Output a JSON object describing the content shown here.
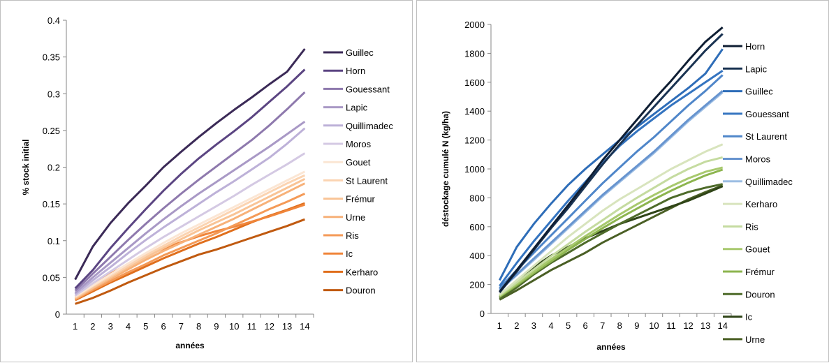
{
  "chart_data": [
    {
      "type": "line",
      "xlabel": "années",
      "ylabel": "% stock initial",
      "x": [
        1,
        2,
        3,
        4,
        5,
        6,
        7,
        8,
        9,
        10,
        11,
        12,
        13,
        14
      ],
      "ylim": [
        0,
        0.4
      ],
      "yticks": [
        "0",
        "0.05",
        "0.1",
        "0.15",
        "0.2",
        "0.25",
        "0.3",
        "0.35",
        "0.4"
      ],
      "grid": false,
      "legend": "right",
      "series": [
        {
          "name": "Guillec",
          "color": "#3b2a57",
          "values": [
            0.047,
            0.092,
            0.124,
            0.151,
            0.175,
            0.2,
            0.221,
            0.241,
            0.26,
            0.278,
            0.295,
            0.313,
            0.33,
            0.361
          ]
        },
        {
          "name": "Horn",
          "color": "#5b4582",
          "values": [
            0.035,
            0.06,
            0.09,
            0.117,
            0.143,
            0.168,
            0.191,
            0.212,
            0.231,
            0.249,
            0.268,
            0.289,
            0.31,
            0.333
          ]
        },
        {
          "name": "Gouessant",
          "color": "#8e79ad",
          "values": [
            0.032,
            0.055,
            0.078,
            0.101,
            0.123,
            0.144,
            0.164,
            0.183,
            0.201,
            0.219,
            0.237,
            0.257,
            0.279,
            0.302
          ]
        },
        {
          "name": "Lapic",
          "color": "#a999c6",
          "values": [
            0.029,
            0.05,
            0.07,
            0.09,
            0.11,
            0.129,
            0.147,
            0.164,
            0.18,
            0.196,
            0.212,
            0.228,
            0.245,
            0.262
          ]
        },
        {
          "name": "Quillimadec",
          "color": "#bdb1d8",
          "values": [
            0.027,
            0.046,
            0.064,
            0.083,
            0.101,
            0.118,
            0.134,
            0.15,
            0.166,
            0.181,
            0.197,
            0.213,
            0.232,
            0.253
          ]
        },
        {
          "name": "Moros",
          "color": "#d4c9e3",
          "values": [
            0.025,
            0.042,
            0.058,
            0.074,
            0.09,
            0.105,
            0.119,
            0.133,
            0.147,
            0.161,
            0.176,
            0.19,
            0.204,
            0.219
          ]
        },
        {
          "name": "Gouet",
          "color": "#fbe6d4",
          "values": [
            0.024,
            0.039,
            0.054,
            0.069,
            0.083,
            0.097,
            0.11,
            0.122,
            0.134,
            0.146,
            0.158,
            0.17,
            0.182,
            0.194
          ]
        },
        {
          "name": "St Laurent",
          "color": "#fbd4b2",
          "values": [
            0.023,
            0.038,
            0.052,
            0.066,
            0.08,
            0.093,
            0.106,
            0.118,
            0.13,
            0.142,
            0.154,
            0.166,
            0.178,
            0.189
          ]
        },
        {
          "name": "Frémur",
          "color": "#f9c496",
          "values": [
            0.022,
            0.036,
            0.05,
            0.064,
            0.077,
            0.09,
            0.102,
            0.114,
            0.125,
            0.136,
            0.148,
            0.16,
            0.172,
            0.184
          ]
        },
        {
          "name": "Urne",
          "color": "#f7b179",
          "values": [
            0.021,
            0.035,
            0.048,
            0.061,
            0.074,
            0.086,
            0.097,
            0.108,
            0.119,
            0.13,
            0.142,
            0.154,
            0.166,
            0.178
          ]
        },
        {
          "name": "Ris",
          "color": "#f49a57",
          "values": [
            0.02,
            0.033,
            0.045,
            0.057,
            0.068,
            0.08,
            0.09,
            0.1,
            0.11,
            0.121,
            0.132,
            0.143,
            0.153,
            0.164
          ]
        },
        {
          "name": "Ic",
          "color": "#f0853a",
          "values": [
            0.024,
            0.04,
            0.055,
            0.068,
            0.079,
            0.089,
            0.098,
            0.106,
            0.113,
            0.119,
            0.126,
            0.133,
            0.141,
            0.149
          ]
        },
        {
          "name": "Kerharo",
          "color": "#e06f1d",
          "values": [
            0.019,
            0.031,
            0.043,
            0.054,
            0.065,
            0.076,
            0.086,
            0.096,
            0.105,
            0.115,
            0.125,
            0.134,
            0.142,
            0.151
          ]
        },
        {
          "name": "Douron",
          "color": "#c05a10",
          "values": [
            0.014,
            0.022,
            0.032,
            0.043,
            0.053,
            0.063,
            0.072,
            0.081,
            0.088,
            0.096,
            0.104,
            0.112,
            0.12,
            0.129
          ]
        }
      ]
    },
    {
      "type": "line",
      "xlabel": "années",
      "ylabel": "déstockage cumulé N (kg/ha)",
      "x": [
        1,
        2,
        3,
        4,
        5,
        6,
        7,
        8,
        9,
        10,
        11,
        12,
        13,
        14
      ],
      "ylim": [
        0,
        2000
      ],
      "yticks": [
        "0",
        "200",
        "400",
        "600",
        "800",
        "1000",
        "1200",
        "1400",
        "1600",
        "1800",
        "2000"
      ],
      "grid": false,
      "legend": "right",
      "series": [
        {
          "name": "Horn",
          "color": "#0f1e33",
          "values": [
            150,
            300,
            450,
            600,
            750,
            900,
            1060,
            1200,
            1340,
            1480,
            1610,
            1750,
            1880,
            1980
          ]
        },
        {
          "name": "Lapic",
          "color": "#1a3352",
          "values": [
            145,
            290,
            440,
            590,
            730,
            880,
            1030,
            1170,
            1300,
            1430,
            1560,
            1690,
            1820,
            1935
          ]
        },
        {
          "name": "Guillec",
          "color": "#2e6db8",
          "values": [
            230,
            460,
            620,
            760,
            890,
            1000,
            1100,
            1200,
            1290,
            1380,
            1470,
            1560,
            1660,
            1830
          ]
        },
        {
          "name": "Gouessant",
          "color": "#3474c0",
          "values": [
            190,
            350,
            500,
            640,
            780,
            910,
            1040,
            1160,
            1260,
            1350,
            1440,
            1520,
            1600,
            1680
          ]
        },
        {
          "name": "St Laurent",
          "color": "#4f86c9",
          "values": [
            175,
            300,
            420,
            540,
            660,
            780,
            900,
            1010,
            1120,
            1220,
            1330,
            1440,
            1540,
            1650
          ]
        },
        {
          "name": "Moros",
          "color": "#6794cf",
          "values": [
            165,
            270,
            380,
            490,
            600,
            710,
            820,
            920,
            1020,
            1120,
            1230,
            1340,
            1440,
            1540
          ]
        },
        {
          "name": "Quillimadec",
          "color": "#9cbde3",
          "values": [
            160,
            265,
            370,
            480,
            590,
            700,
            810,
            910,
            1010,
            1110,
            1220,
            1330,
            1430,
            1530
          ]
        },
        {
          "name": "Kerharo",
          "color": "#d8e4bd",
          "values": [
            130,
            230,
            330,
            430,
            530,
            620,
            710,
            790,
            860,
            930,
            1000,
            1060,
            1120,
            1170
          ]
        },
        {
          "name": "Ris",
          "color": "#c5dba0",
          "values": [
            125,
            215,
            305,
            395,
            480,
            565,
            645,
            725,
            800,
            870,
            940,
            1000,
            1050,
            1080
          ]
        },
        {
          "name": "Gouet",
          "color": "#a8c96e",
          "values": [
            120,
            205,
            290,
            375,
            455,
            535,
            610,
            685,
            755,
            820,
            880,
            935,
            980,
            1010
          ]
        },
        {
          "name": "Frémur",
          "color": "#8db54f",
          "values": [
            115,
            195,
            280,
            360,
            440,
            515,
            590,
            660,
            725,
            790,
            850,
            905,
            955,
            995
          ]
        },
        {
          "name": "Douron",
          "color": "#4e6b2a",
          "values": [
            100,
            180,
            270,
            350,
            420,
            490,
            555,
            620,
            680,
            740,
            800,
            840,
            870,
            895
          ]
        },
        {
          "name": "Ic",
          "color": "#2f4417",
          "values": [
            110,
            220,
            320,
            400,
            460,
            520,
            570,
            620,
            660,
            700,
            740,
            780,
            830,
            880
          ]
        },
        {
          "name": "Urne",
          "color": "#4a5f25",
          "values": [
            95,
            160,
            230,
            300,
            360,
            420,
            490,
            550,
            610,
            670,
            730,
            790,
            840,
            885
          ]
        }
      ]
    }
  ]
}
